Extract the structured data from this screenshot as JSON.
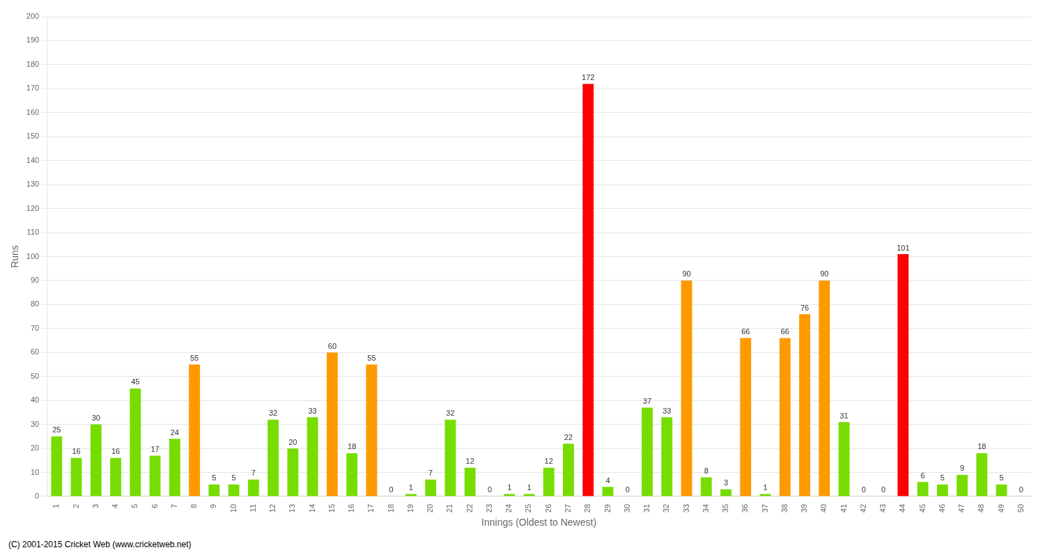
{
  "chart_data": {
    "type": "bar",
    "xlabel": "Innings (Oldest to Newest)",
    "ylabel": "Runs",
    "categories": [
      "1",
      "2",
      "3",
      "4",
      "5",
      "6",
      "7",
      "8",
      "9",
      "10",
      "11",
      "12",
      "13",
      "14",
      "15",
      "16",
      "17",
      "18",
      "19",
      "20",
      "21",
      "22",
      "23",
      "24",
      "25",
      "26",
      "27",
      "28",
      "29",
      "30",
      "31",
      "32",
      "33",
      "34",
      "35",
      "36",
      "37",
      "38",
      "39",
      "40",
      "41",
      "42",
      "43",
      "44",
      "45",
      "46",
      "47",
      "48",
      "49",
      "50"
    ],
    "values": [
      25,
      16,
      30,
      16,
      45,
      17,
      24,
      55,
      5,
      5,
      7,
      32,
      20,
      33,
      60,
      18,
      55,
      0,
      1,
      7,
      32,
      12,
      0,
      1,
      1,
      12,
      22,
      172,
      4,
      0,
      37,
      33,
      90,
      8,
      3,
      66,
      1,
      66,
      76,
      90,
      31,
      0,
      0,
      101,
      6,
      5,
      9,
      18,
      5,
      0
    ],
    "colors": [
      "#77dd00",
      "#77dd00",
      "#77dd00",
      "#77dd00",
      "#77dd00",
      "#77dd00",
      "#77dd00",
      "#ff9900",
      "#77dd00",
      "#77dd00",
      "#77dd00",
      "#77dd00",
      "#77dd00",
      "#77dd00",
      "#ff9900",
      "#77dd00",
      "#ff9900",
      "#77dd00",
      "#77dd00",
      "#77dd00",
      "#77dd00",
      "#77dd00",
      "#77dd00",
      "#77dd00",
      "#77dd00",
      "#77dd00",
      "#77dd00",
      "#ff0000",
      "#77dd00",
      "#77dd00",
      "#77dd00",
      "#77dd00",
      "#ff9900",
      "#77dd00",
      "#77dd00",
      "#ff9900",
      "#77dd00",
      "#ff9900",
      "#ff9900",
      "#ff9900",
      "#77dd00",
      "#77dd00",
      "#77dd00",
      "#ff0000",
      "#77dd00",
      "#77dd00",
      "#77dd00",
      "#77dd00",
      "#77dd00",
      "#77dd00"
    ],
    "ylim": [
      0,
      200
    ],
    "yticks": [
      0,
      10,
      20,
      30,
      40,
      50,
      60,
      70,
      80,
      90,
      100,
      110,
      120,
      130,
      140,
      150,
      160,
      170,
      180,
      190,
      200
    ],
    "grid": true,
    "data_labels": true,
    "annotations": [
      "(C) 2001-2015 Cricket Web (www.cricketweb.net)"
    ]
  }
}
